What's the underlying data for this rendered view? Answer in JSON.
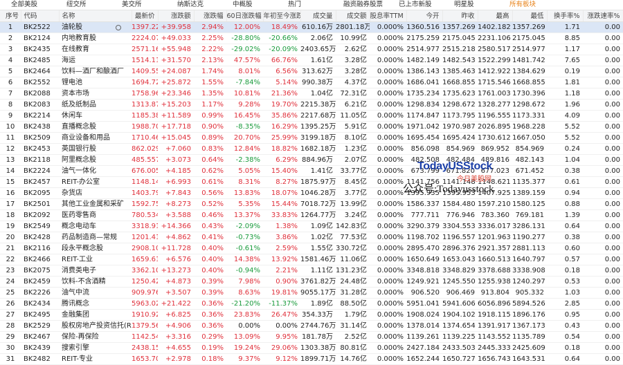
{
  "tabs": [
    "全部美股",
    "纽交所",
    "美交所",
    "纳斯达克",
    "中概股",
    "热门",
    "融资融券股票",
    "已上市新股",
    "明星股",
    "所有板块"
  ],
  "selected_tab": 9,
  "table": {
    "headers": [
      "序号",
      "代码",
      "名称",
      "最新价",
      "涨跌额",
      "涨跌幅",
      "60日涨跌幅",
      "年初至今涨跌",
      "成交量",
      "成交额",
      "股息率TTM",
      "今开",
      "昨收",
      "最高",
      "最低",
      "换手率%",
      "涨跌速率%"
    ],
    "selected_row": 0,
    "rows": [
      [
        "1",
        "BK2522",
        "油轮股",
        "1397.227",
        "+39.958",
        "2.94%",
        "12.00%",
        "18.49%",
        "610.16万",
        "2801.18万",
        "0.000%",
        "1360.516",
        "1357.269",
        "1402.182",
        "1357.269",
        "1.71",
        "0.00"
      ],
      [
        "2",
        "BK2124",
        "内地教育股",
        "2224.078",
        "+49.033",
        "2.25%",
        "-28.80%",
        "-20.66%",
        "2.06亿",
        "10.99亿",
        "0.000%",
        "2175.259",
        "2175.045",
        "2231.106",
        "2175.045",
        "8.85",
        "0.00"
      ],
      [
        "3",
        "BK2435",
        "在线教育",
        "2571.166",
        "+55.948",
        "2.22%",
        "-29.02%",
        "-20.09%",
        "2403.65万",
        "2.62亿",
        "0.000%",
        "2514.977",
        "2515.218",
        "2580.517",
        "2514.977",
        "1.17",
        "0.00"
      ],
      [
        "4",
        "BK2485",
        "海运",
        "1514.113",
        "+31.570",
        "2.13%",
        "47.57%",
        "66.76%",
        "1.61亿",
        "3.28亿",
        "0.000%",
        "1482.149",
        "1482.543",
        "1522.299",
        "1481.742",
        "7.65",
        "0.00"
      ],
      [
        "5",
        "BK2464",
        "饮料—酒厂和酿酒厂",
        "1409.550",
        "+24.087",
        "1.74%",
        "8.01%",
        "6.56%",
        "313.62万",
        "3.28亿",
        "0.000%",
        "1386.143",
        "1385.463",
        "1412.922",
        "1384.629",
        "0.19",
        "0.00"
      ],
      [
        "6",
        "BK2552",
        "锂电池",
        "1694.727",
        "+25.872",
        "1.55%",
        "-7.84%",
        "5.14%",
        "990.38万",
        "4.37亿",
        "0.000%",
        "1686.041",
        "1668.855",
        "1715.546",
        "1668.855",
        "1.81",
        "0.00"
      ],
      [
        "7",
        "BK2088",
        "资本市场",
        "1758.969",
        "+23.346",
        "1.35%",
        "10.81%",
        "21.36%",
        "1.04亿",
        "72.31亿",
        "0.000%",
        "1735.234",
        "1735.623",
        "1761.003",
        "1730.396",
        "1.18",
        "0.00"
      ],
      [
        "8",
        "BK2083",
        "纸及纸制品",
        "1313.875",
        "+15.203",
        "1.17%",
        "9.28%",
        "19.70%",
        "2215.38万",
        "6.21亿",
        "0.000%",
        "1298.834",
        "1298.672",
        "1328.277",
        "1298.672",
        "1.96",
        "0.00"
      ],
      [
        "9",
        "BK2214",
        "休闲车",
        "1185.384",
        "+11.589",
        "0.99%",
        "16.45%",
        "35.86%",
        "2217.68万",
        "11.05亿",
        "0.000%",
        "1174.847",
        "1173.795",
        "1196.555",
        "1173.331",
        "4.09",
        "0.00"
      ],
      [
        "10",
        "BK2438",
        "直播概念股",
        "1988.705",
        "+17.718",
        "0.90%",
        "-8.35%",
        "16.29%",
        "1395.25万",
        "5.91亿",
        "0.000%",
        "1971.042",
        "1970.987",
        "2026.895",
        "1968.228",
        "5.52",
        "0.00"
      ],
      [
        "11",
        "BK2509",
        "商业设备和用品",
        "1710.469",
        "+15.045",
        "0.89%",
        "20.70%",
        "25.99%",
        "3199.18万",
        "8.10亿",
        "0.000%",
        "1695.454",
        "1695.424",
        "1730.612",
        "1667.050",
        "5.52",
        "0.00"
      ],
      [
        "12",
        "BK2453",
        "英国银行股",
        "862.029",
        "+7.060",
        "0.83%",
        "12.84%",
        "18.82%",
        "1682.18万",
        "1.23亿",
        "0.000%",
        "856.098",
        "854.969",
        "869.952",
        "854.969",
        "0.24",
        "0.00"
      ],
      [
        "13",
        "BK2118",
        "阿里概念股",
        "485.557",
        "+3.073",
        "0.64%",
        "-2.38%",
        "6.29%",
        "884.96万",
        "2.07亿",
        "0.000%",
        "482.508",
        "482.484",
        "489.816",
        "482.143",
        "1.04",
        "0.00"
      ],
      [
        "14",
        "BK2224",
        "油气一体化",
        "676.005",
        "+4.185",
        "0.62%",
        "5.05%",
        "15.40%",
        "1.41亿",
        "33.77亿",
        "0.000%",
        "673.799",
        "671.820",
        "677.023",
        "671.452",
        "0.38",
        "0.00"
      ],
      [
        "15",
        "BK2457",
        "REIT-办公室",
        "1148.141",
        "+6.993",
        "0.61%",
        "8.31%",
        "8.27%",
        "1875.97万",
        "8.45亿",
        "0.000%",
        "1141.756",
        "1141.148",
        "1148.621",
        "1135.377",
        "0.61",
        "0.00"
      ],
      [
        "16",
        "BK2095",
        "杂货店",
        "1403.796",
        "+7.843",
        "0.56%",
        "13.83%",
        "18.07%",
        "1046.28万",
        "3.77亿",
        "0.000%",
        "1395.935",
        "1395.953",
        "1407.925",
        "1389.159",
        "0.94",
        "0.00"
      ],
      [
        "17",
        "BK2501",
        "其他工业金属和采矿",
        "1592.753",
        "+8.273",
        "0.52%",
        "5.35%",
        "15.44%",
        "7018.72万",
        "13.99亿",
        "0.000%",
        "1586.337",
        "1584.480",
        "1597.210",
        "1580.125",
        "0.88",
        "0.00"
      ],
      [
        "18",
        "BK2092",
        "医药零售商",
        "780.534",
        "+3.588",
        "0.46%",
        "13.37%",
        "33.83%",
        "1264.77万",
        "3.24亿",
        "0.000%",
        "777.711",
        "776.946",
        "783.360",
        "769.181",
        "1.39",
        "0.00"
      ],
      [
        "19",
        "BK2549",
        "概念电动车",
        "3318.919",
        "+14.366",
        "0.43%",
        "-2.09%",
        "1.38%",
        "1.09亿",
        "142.83亿",
        "0.000%",
        "3290.379",
        "3304.553",
        "3336.017",
        "3286.131",
        "0.64",
        "0.00"
      ],
      [
        "20",
        "BK2428",
        "药品制造商—常规",
        "1201.419",
        "+4.862",
        "0.41%",
        "-0.73%",
        "3.86%",
        "1.02亿",
        "77.53亿",
        "0.000%",
        "1198.702",
        "1196.557",
        "1201.963",
        "1190.277",
        "0.38",
        "0.00"
      ],
      [
        "21",
        "BK2116",
        "段永平概念股",
        "2908.104",
        "+11.728",
        "0.40%",
        "-0.61%",
        "2.59%",
        "1.55亿",
        "330.72亿",
        "0.000%",
        "2895.470",
        "2896.376",
        "2921.357",
        "2881.113",
        "0.60",
        "0.00"
      ],
      [
        "22",
        "BK2466",
        "REIT-工业",
        "1659.619",
        "+6.576",
        "0.40%",
        "14.38%",
        "13.92%",
        "1581.46万",
        "11.06亿",
        "0.000%",
        "1650.649",
        "1653.043",
        "1660.513",
        "1640.797",
        "0.57",
        "0.00"
      ],
      [
        "23",
        "BK2075",
        "消费类电子",
        "3362.102",
        "+13.273",
        "0.40%",
        "-0.94%",
        "2.21%",
        "1.11亿",
        "131.23亿",
        "0.000%",
        "3348.818",
        "3348.829",
        "3378.688",
        "3338.908",
        "0.18",
        "0.00"
      ],
      [
        "24",
        "BK2459",
        "饮料-不含酒精",
        "1250.423",
        "+4.873",
        "0.39%",
        "7.98%",
        "0.90%",
        "3761.82万",
        "24.48亿",
        "0.000%",
        "1249.921",
        "1245.550",
        "1255.938",
        "1240.297",
        "0.53",
        "0.00"
      ],
      [
        "25",
        "BK2226",
        "油气中流",
        "909.976",
        "+3.507",
        "0.39%",
        "8.63%",
        "19.81%",
        "9055.17万",
        "31.28亿",
        "0.000%",
        "906.520",
        "906.469",
        "913.804",
        "905.332",
        "1.03",
        "0.00"
      ],
      [
        "26",
        "BK2434",
        "腾讯概念",
        "5963.028",
        "+21.422",
        "0.36%",
        "-21.20%",
        "-11.37%",
        "1.89亿",
        "88.50亿",
        "0.000%",
        "5951.041",
        "5941.606",
        "6056.896",
        "5894.526",
        "2.85",
        "0.00"
      ],
      [
        "27",
        "BK2495",
        "金融集团",
        "1910.927",
        "+6.825",
        "0.36%",
        "23.83%",
        "26.47%",
        "354.33万",
        "1.79亿",
        "0.000%",
        "1908.024",
        "1904.102",
        "1918.115",
        "1896.176",
        "0.95",
        "0.00"
      ],
      [
        "28",
        "BK2529",
        "股权房地产投资信托(REIT",
        "1379.560",
        "+4.906",
        "0.36%",
        "0.00%",
        "0.00%",
        "2744.76万",
        "31.14亿",
        "0.000%",
        "1378.014",
        "1374.654",
        "1391.917",
        "1367.173",
        "0.43",
        "0.00"
      ],
      [
        "29",
        "BK2467",
        "保险-再保险",
        "1142.541",
        "+3.316",
        "0.29%",
        "13.09%",
        "9.95%",
        "181.78万",
        "2.52亿",
        "0.000%",
        "1139.261",
        "1139.225",
        "1143.552",
        "1135.789",
        "0.54",
        "0.00"
      ],
      [
        "30",
        "BK2439",
        "搜索引擎",
        "2438.158",
        "+4.655",
        "0.19%",
        "19.24%",
        "29.06%",
        "1303.38万",
        "80.81亿",
        "0.000%",
        "2427.184",
        "2433.503",
        "2445.333",
        "2425.609",
        "0.18",
        "0.00"
      ],
      [
        "31",
        "BK2482",
        "REIT-专业",
        "1653.705",
        "+2.978",
        "0.18%",
        "9.37%",
        "9.12%",
        "1899.71万",
        "14.76亿",
        "0.000%",
        "1652.244",
        "1650.727",
        "1656.743",
        "1643.531",
        "0.64",
        "0.00"
      ]
    ]
  },
  "watermark": {
    "brand": "TodayUSStock",
    "site": "今日美股网",
    "account": "公众号:Todayusstock"
  }
}
